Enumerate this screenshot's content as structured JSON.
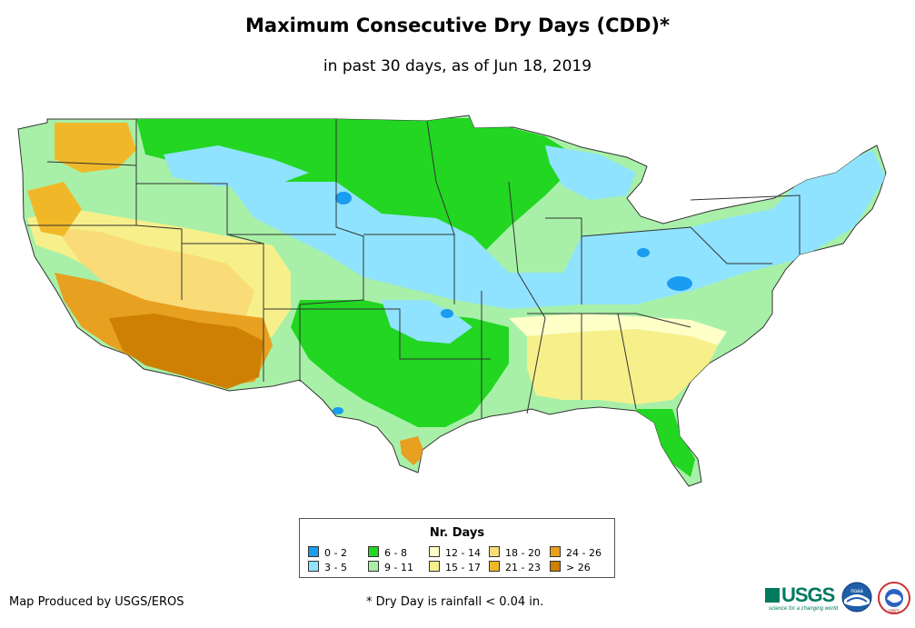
{
  "title": "Maximum Consecutive Dry Days (CDD)*",
  "subtitle": "in past 30 days, as of Jun 18, 2019",
  "legend": {
    "title": "Nr. Days",
    "items": [
      {
        "label": "0 - 2",
        "color": "#1a9cf0"
      },
      {
        "label": "3 - 5",
        "color": "#8fe3ff"
      },
      {
        "label": "6 - 8",
        "color": "#22d622"
      },
      {
        "label": "9 - 11",
        "color": "#a8f0a8"
      },
      {
        "label": "12 - 14",
        "color": "#ffffc8"
      },
      {
        "label": "15 - 17",
        "color": "#f7f08a"
      },
      {
        "label": "18 - 20",
        "color": "#f9dc78"
      },
      {
        "label": "21 - 23",
        "color": "#f0b828"
      },
      {
        "label": "24 - 26",
        "color": "#e8a020"
      },
      {
        "label": "> 26",
        "color": "#cd8002"
      }
    ]
  },
  "credit": "Map Produced by USGS/EROS",
  "footnote": "* Dry Day is rainfall < 0.04 in.",
  "logos": {
    "usgs": "USGS",
    "usgs_tagline": "science for a changing world",
    "noaa": "noaa",
    "nws": "NWS"
  }
}
